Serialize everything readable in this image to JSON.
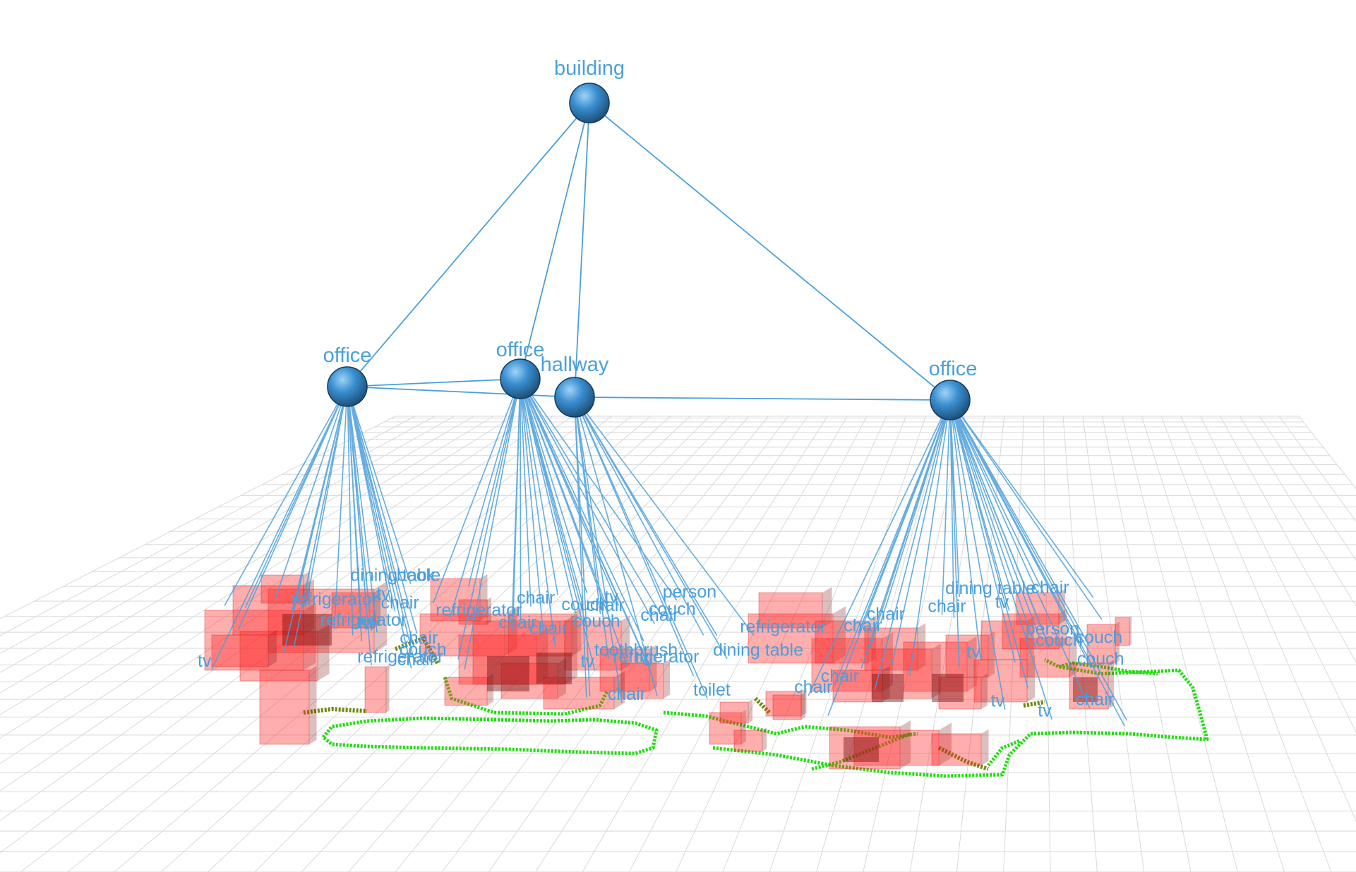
{
  "colors": {
    "background": "#ffffff",
    "grid": "#d9d9d9",
    "edge": "#4a9fdc",
    "node": "#3a8fd0",
    "label": "#4a9fdc",
    "object_fill": "#ff2a2a",
    "object_dark": "#8a1a1a",
    "trajectory": "#22dd11",
    "trajectory_dark": "#6f8a0a"
  },
  "nodes": [
    {
      "id": "b",
      "label": "building",
      "level": "building"
    },
    {
      "id": "r1",
      "label": "office",
      "level": "room"
    },
    {
      "id": "r2",
      "label": "office",
      "level": "room"
    },
    {
      "id": "r3",
      "label": "hallway",
      "level": "room"
    },
    {
      "id": "r4",
      "label": "office",
      "level": "room"
    }
  ],
  "edges": [
    [
      "b",
      "r1"
    ],
    [
      "b",
      "r2"
    ],
    [
      "b",
      "r3"
    ],
    [
      "b",
      "r4"
    ],
    [
      "r1",
      "r2"
    ],
    [
      "r1",
      "r3"
    ],
    [
      "r3",
      "r4"
    ]
  ],
  "object_labels": [
    "tv",
    "tv",
    "tv",
    "tv",
    "dining table",
    "couch",
    "chair",
    "chair",
    "chair",
    "refrigerator",
    "refrigerator",
    "refrigerator",
    "book",
    "tv",
    "chair",
    "chair",
    "chair",
    "couch",
    "couch",
    "couch",
    "refrigerator",
    "refrigerator",
    "person",
    "chair",
    "tv",
    "tv",
    "chair",
    "dining table",
    "refrigerator",
    "toothbrush",
    "toilet",
    "chair",
    "chair",
    "chair",
    "dining table",
    "chair",
    "chair",
    "couch",
    "couch",
    "couch",
    "person",
    "chair",
    "tv",
    "tv",
    "tv",
    "chair",
    "tv",
    "chair"
  ]
}
